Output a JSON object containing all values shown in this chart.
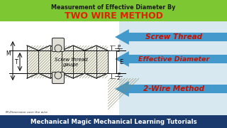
{
  "title_line1": "Measurement of Effective Diameter By",
  "title_line2": "TWO WIRE METHOD",
  "title_bg": "#7dc832",
  "title_color1": "#1a1a1a",
  "title_color2": "#dd2200",
  "arrow_color": "#4499cc",
  "label1": "Screw Thread",
  "label2": "Effective Diameter",
  "label3": "2-Wire Method",
  "label_color": "#cc1100",
  "footer_text": "Mechanical Magic Mechanical Learning Tutorials",
  "footer_bg": "#1a3a6e",
  "footer_color": "#ffffff",
  "bg_color": "#d8e8f0",
  "screw_label": "Screw thread\ngauge",
  "dim_T": "T",
  "dim_M": "M",
  "dim_E": "E"
}
